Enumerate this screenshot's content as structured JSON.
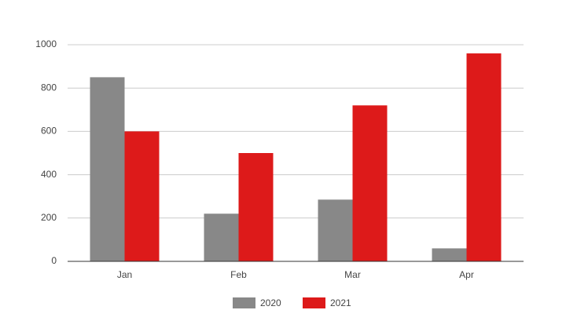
{
  "chart_data": {
    "type": "bar",
    "categories": [
      "Jan",
      "Feb",
      "Mar",
      "Apr"
    ],
    "series": [
      {
        "name": "2020",
        "color": "#888888",
        "values": [
          850,
          220,
          285,
          60
        ]
      },
      {
        "name": "2021",
        "color": "#dd1a1a",
        "values": [
          600,
          500,
          720,
          960
        ]
      }
    ],
    "ylim": [
      0,
      1000
    ],
    "yticks": [
      0,
      200,
      400,
      600,
      800,
      1000
    ],
    "grid": true,
    "legend": "bottom"
  }
}
